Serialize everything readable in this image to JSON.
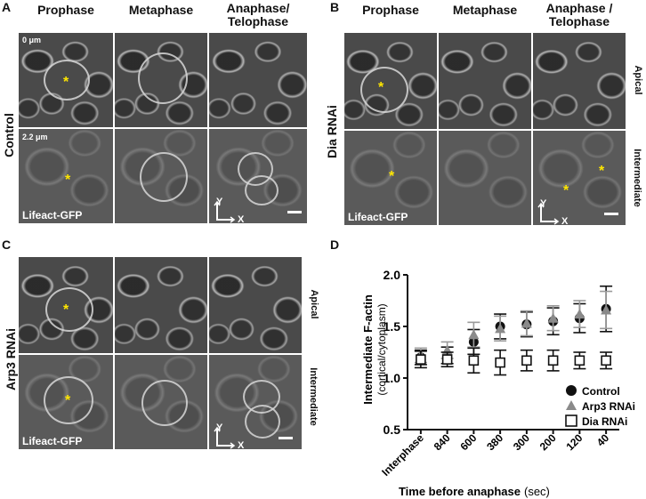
{
  "panels": {
    "A": {
      "letter": "A",
      "columns": [
        "Prophase",
        "Metaphase",
        "Anaphase/\nTelophase"
      ],
      "row_label": "Control",
      "depth_top": "0 μm",
      "depth_bottom": "2.2 μm",
      "marker": "Lifeact-GFP",
      "star": "*",
      "axis_y": "Y",
      "axis_x": "X"
    },
    "B": {
      "letter": "B",
      "columns": [
        "Prophase",
        "Metaphase",
        "Anaphase /\nTelophase"
      ],
      "row_label": "Dia RNAi",
      "side_top": "Apical",
      "side_bottom": "Intermediate",
      "marker": "Lifeact-GFP",
      "star": "*",
      "axis_y": "Y",
      "axis_x": "X"
    },
    "C": {
      "letter": "C",
      "row_label": "Arp3 RNAi",
      "side_top": "Apical",
      "side_bottom": "Intermediate",
      "marker": "Lifeact-GFP",
      "star": "*",
      "axis_y": "Y",
      "axis_x": "X"
    },
    "D": {
      "letter": "D"
    }
  },
  "chart_data": {
    "type": "scatter",
    "ylabel": "Intermediate F-actin",
    "ylabel_sub": "(cortical/cytoplasm)",
    "xlabel": "Time before anaphase",
    "xlabel_unit": "(sec)",
    "categories": [
      "Interphase",
      "840",
      "600",
      "380",
      "300",
      "200",
      "120",
      "40"
    ],
    "ylim": [
      0.5,
      2.0
    ],
    "yticks": [
      "0.5",
      "1.0",
      "1.5",
      "2.0"
    ],
    "grid": false,
    "legend_position": "bottom-right",
    "series": [
      {
        "name": "Control",
        "marker": "circle-filled",
        "color": "#111111",
        "values": [
          1.2,
          1.22,
          1.35,
          1.5,
          1.52,
          1.55,
          1.58,
          1.67
        ],
        "err": [
          0.07,
          0.08,
          0.12,
          0.12,
          0.12,
          0.13,
          0.14,
          0.22
        ]
      },
      {
        "name": "Arp3 RNAi",
        "marker": "triangle-filled",
        "color": "#8a8a8a",
        "values": [
          1.22,
          1.27,
          1.42,
          1.48,
          1.53,
          1.58,
          1.62,
          1.66
        ],
        "err": [
          0.07,
          0.08,
          0.12,
          0.12,
          0.12,
          0.12,
          0.13,
          0.18
        ]
      },
      {
        "name": "Dia RNAi",
        "marker": "square-open",
        "color": "#111111",
        "values": [
          1.18,
          1.18,
          1.17,
          1.15,
          1.17,
          1.17,
          1.17,
          1.17
        ],
        "err": [
          0.08,
          0.07,
          0.12,
          0.12,
          0.1,
          0.1,
          0.08,
          0.08
        ]
      }
    ]
  }
}
